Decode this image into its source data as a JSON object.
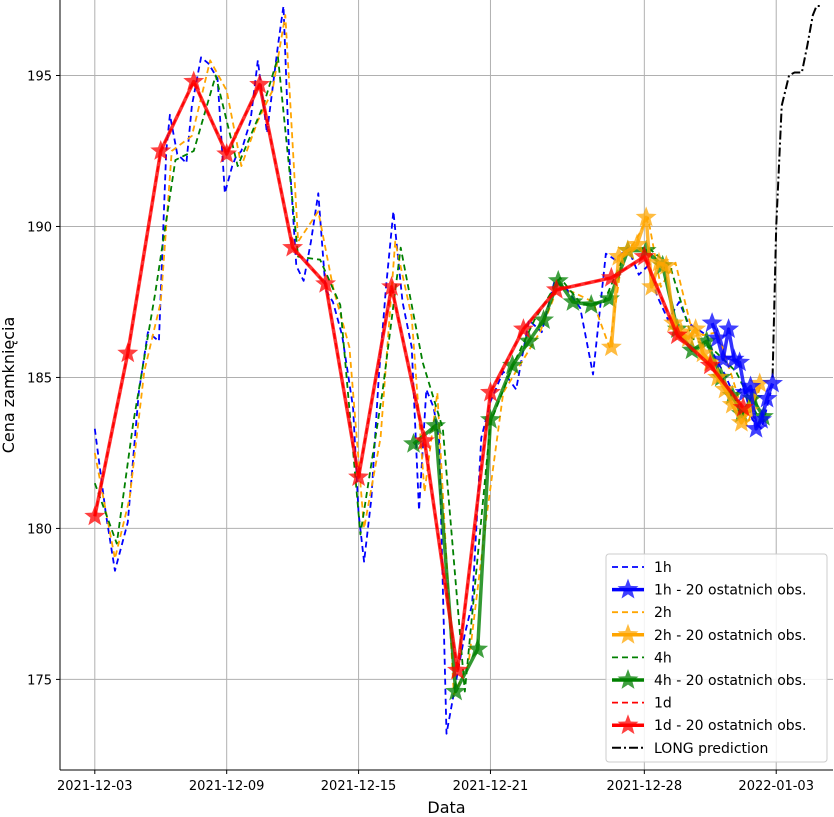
{
  "chart_data": {
    "type": "line",
    "xlabel": "Data",
    "ylabel": "Cena zamknięcia",
    "xlim": [
      "2021-12-01T10:00",
      "2022-01-05T14:00"
    ],
    "ylim": [
      172,
      197.5
    ],
    "x_ticks": [
      "2021-12-03",
      "2021-12-09",
      "2021-12-15",
      "2021-12-21",
      "2021-12-28",
      "2022-01-03"
    ],
    "y_ticks": [
      175,
      180,
      185,
      190,
      195
    ],
    "grid": true,
    "legend_position": "lower-right",
    "series": [
      {
        "name": "1h",
        "color": "#0000ff",
        "style": "dashed",
        "x": [
          "2021-12-03T00:00",
          "2021-12-03T12:00",
          "2021-12-03T22:00",
          "2021-12-04T12:00",
          "2021-12-05T00:00",
          "2021-12-05T10:00",
          "2021-12-05T22:00",
          "2021-12-06T06:00",
          "2021-12-06T10:00",
          "2021-12-06T18:00",
          "2021-12-07T04:00",
          "2021-12-07T10:00",
          "2021-12-07T20:00",
          "2021-12-08T04:00",
          "2021-12-08T14:00",
          "2021-12-08T22:00",
          "2021-12-09T06:00",
          "2021-12-09T10:00",
          "2021-12-09T16:00",
          "2021-12-10T02:00",
          "2021-12-10T10:00",
          "2021-12-10T20:00",
          "2021-12-11T08:00",
          "2021-12-11T14:00",
          "2021-12-11T20:00",
          "2021-12-12T04:00",
          "2021-12-12T12:00",
          "2021-12-12T20:00",
          "2021-12-13T04:00",
          "2021-12-13T12:00",
          "2021-12-13T20:00",
          "2021-12-14T06:00",
          "2021-12-14T18:00",
          "2021-12-15T00:00",
          "2021-12-15T06:00",
          "2021-12-15T14:00",
          "2021-12-15T22:00",
          "2021-12-16T06:00",
          "2021-12-16T14:00",
          "2021-12-17T00:00",
          "2021-12-17T10:00",
          "2021-12-17T18:00",
          "2021-12-18T02:00",
          "2021-12-18T10:00",
          "2021-12-18T16:00",
          "2021-12-19T00:00",
          "2021-12-19T12:00",
          "2021-12-19T20:00",
          "2021-12-20T04:00",
          "2021-12-20T14:00",
          "2021-12-21T00:00",
          "2021-12-21T14:00",
          "2021-12-22T04:00",
          "2021-12-22T18:00",
          "2021-12-23T08:00",
          "2021-12-23T22:00",
          "2021-12-24T12:00",
          "2021-12-25T02:00",
          "2021-12-25T16:00",
          "2021-12-26T06:00",
          "2021-12-26T16:00",
          "2021-12-27T06:00",
          "2021-12-27T18:00",
          "2021-12-28T04:00",
          "2021-12-28T14:00",
          "2021-12-29T02:00",
          "2021-12-29T14:00",
          "2021-12-30T00:00",
          "2021-12-30T10:00",
          "2021-12-30T20:00",
          "2021-12-31T06:00",
          "2021-12-31T16:00",
          "2022-01-01T02:00",
          "2022-01-01T12:00",
          "2022-01-01T22:00",
          "2022-01-02T08:00",
          "2022-01-02T18:00"
        ],
        "y": [
          183.3,
          180.5,
          178.6,
          180.2,
          184.5,
          186.5,
          186.2,
          192.5,
          193.7,
          192.4,
          192.1,
          194.0,
          195.6,
          195.4,
          194.9,
          191.1,
          192.0,
          192.3,
          192.5,
          193.5,
          195.5,
          193.1,
          196.0,
          197.3,
          192.5,
          188.7,
          188.2,
          189.5,
          191.1,
          187.9,
          187.5,
          186.4,
          184.0,
          180.5,
          178.9,
          181.0,
          185.0,
          188.0,
          190.5,
          187.5,
          186.0,
          180.6,
          184.6,
          184.0,
          182.9,
          173.2,
          175.2,
          176.5,
          177.5,
          183.0,
          184.2,
          185.2,
          184.6,
          186.9,
          186.5,
          188.2,
          187.9,
          187.3,
          185.1,
          189.1,
          188.9,
          189.3,
          188.4,
          188.7,
          187.7,
          186.9,
          187.5,
          186.8,
          186.6,
          186.4,
          185.6,
          185.1,
          184.4,
          184.7,
          183.6,
          183.3,
          184.5
        ]
      },
      {
        "name": "1h - 20 ostatnich obs.",
        "color": "#0000ff",
        "style": "solid-star",
        "x": [
          "2021-12-31T02:00",
          "2021-12-31T08:00",
          "2021-12-31T14:00",
          "2021-12-31T20:00",
          "2022-01-01T02:00",
          "2022-01-01T08:00",
          "2022-01-01T14:00",
          "2022-01-01T20:00",
          "2022-01-02T02:00",
          "2022-01-02T08:00",
          "2022-01-02T14:00",
          "2022-01-02T20:00"
        ],
        "y": [
          186.8,
          186.3,
          185.6,
          186.6,
          185.6,
          185.5,
          184.5,
          184.7,
          183.3,
          183.6,
          184.3,
          184.8
        ]
      },
      {
        "name": "2h",
        "color": "#ffa500",
        "style": "dashed",
        "x": [
          "2021-12-03T00:00",
          "2021-12-03T22:00",
          "2021-12-04T14:00",
          "2021-12-05T06:00",
          "2021-12-06T00:00",
          "2021-12-06T12:00",
          "2021-12-07T10:00",
          "2021-12-08T06:00",
          "2021-12-09T00:00",
          "2021-12-09T16:00",
          "2021-12-10T10:00",
          "2021-12-11T02:00",
          "2021-12-11T16:00",
          "2021-12-12T06:00",
          "2021-12-13T04:00",
          "2021-12-13T20:00",
          "2021-12-14T14:00",
          "2021-12-15T06:00",
          "2021-12-16T00:00",
          "2021-12-16T16:00",
          "2021-12-17T10:00",
          "2021-12-18T00:00",
          "2021-12-18T14:00",
          "2021-12-19T08:00",
          "2021-12-20T00:00",
          "2021-12-20T18:00",
          "2021-12-21T14:00",
          "2021-12-22T10:00",
          "2021-12-23T06:00",
          "2021-12-24T02:00",
          "2021-12-24T20:00",
          "2021-12-25T16:00",
          "2021-12-26T10:00",
          "2021-12-27T00:00",
          "2021-12-27T14:00",
          "2021-12-28T04:00",
          "2021-12-28T18:00",
          "2021-12-29T10:00",
          "2021-12-30T02:00",
          "2021-12-30T16:00",
          "2021-12-31T08:00",
          "2022-01-01T00:00",
          "2022-01-01T16:00",
          "2022-01-02T08:00"
        ],
        "y": [
          182.5,
          179.0,
          181.0,
          185.2,
          187.5,
          192.5,
          193.0,
          195.5,
          194.5,
          192.0,
          193.5,
          194.5,
          197.0,
          189.5,
          190.5,
          188.0,
          186.0,
          180.0,
          183.0,
          189.5,
          187.0,
          181.2,
          184.5,
          174.5,
          175.5,
          180.0,
          184.5,
          185.5,
          186.5,
          188.0,
          187.8,
          187.5,
          186.0,
          189.0,
          189.5,
          190.3,
          188.0,
          188.8,
          186.8,
          186.4,
          186.5,
          185.0,
          183.4,
          184.8
        ]
      },
      {
        "name": "2h - 20 ostatnich obs.",
        "color": "#ffa500",
        "style": "solid-star",
        "x": [
          "2021-12-26T12:00",
          "2021-12-26T20:00",
          "2021-12-27T06:00",
          "2021-12-27T16:00",
          "2021-12-28T02:00",
          "2021-12-28T08:00",
          "2021-12-28T16:00",
          "2021-12-29T00:00",
          "2021-12-29T08:00",
          "2021-12-29T16:00",
          "2021-12-30T00:00",
          "2021-12-30T08:00",
          "2021-12-30T16:00",
          "2021-12-31T00:00",
          "2021-12-31T08:00",
          "2021-12-31T16:00",
          "2022-01-01T00:00",
          "2022-01-01T10:00",
          "2022-01-01T18:00",
          "2022-01-02T06:00"
        ],
        "y": [
          186.0,
          189.0,
          189.2,
          189.4,
          190.3,
          188.0,
          188.8,
          188.7,
          186.8,
          186.5,
          186.3,
          186.6,
          185.8,
          185.5,
          185.0,
          184.6,
          184.1,
          183.5,
          183.9,
          184.8
        ]
      },
      {
        "name": "4h",
        "color": "#008000",
        "style": "dashed",
        "x": [
          "2021-12-03T00:00",
          "2021-12-04T00:00",
          "2021-12-04T18:00",
          "2021-12-05T18:00",
          "2021-12-06T16:00",
          "2021-12-07T12:00",
          "2021-12-08T12:00",
          "2021-12-09T12:00",
          "2021-12-10T16:00",
          "2021-12-11T08:00",
          "2021-12-12T06:00",
          "2021-12-13T06:00",
          "2021-12-14T04:00",
          "2021-12-15T02:00",
          "2021-12-16T02:00",
          "2021-12-16T22:00",
          "2021-12-17T22:00",
          "2021-12-18T20:00",
          "2021-12-19T20:00",
          "2021-12-21T00:00",
          "2021-12-22T02:00",
          "2021-12-23T00:00",
          "2021-12-24T04:00",
          "2021-12-25T04:00",
          "2021-12-26T04:00",
          "2021-12-27T04:00",
          "2021-12-28T04:00",
          "2021-12-29T04:00",
          "2021-12-30T04:00",
          "2021-12-31T04:00",
          "2022-01-01T04:00",
          "2022-01-02T04:00"
        ],
        "y": [
          181.5,
          179.5,
          183.5,
          187.8,
          192.2,
          192.5,
          195.0,
          192.0,
          194.0,
          195.6,
          189.0,
          188.9,
          187.4,
          179.8,
          184.5,
          189.3,
          185.5,
          183.3,
          174.6,
          183.5,
          185.5,
          186.9,
          188.3,
          187.4,
          187.5,
          189.2,
          189.3,
          188.7,
          186.3,
          185.9,
          185.2,
          183.7
        ]
      },
      {
        "name": "4h - 20 ostatnich obs.",
        "color": "#008000",
        "style": "solid-star",
        "x": [
          "2021-12-17T12:00",
          "2021-12-18T12:00",
          "2021-12-19T10:00",
          "2021-12-20T10:00",
          "2021-12-21T00:00",
          "2021-12-22T00:00",
          "2021-12-22T18:00",
          "2021-12-23T10:00",
          "2021-12-24T02:00",
          "2021-12-24T18:00",
          "2021-12-25T14:00",
          "2021-12-26T10:00",
          "2021-12-27T06:00",
          "2021-12-28T02:00",
          "2021-12-28T20:00",
          "2021-12-29T12:00",
          "2021-12-30T04:00",
          "2021-12-30T20:00",
          "2021-12-31T12:00",
          "2022-01-01T00:00",
          "2022-01-01T10:00",
          "2022-01-01T22:00",
          "2022-01-02T10:00"
        ],
        "y": [
          182.8,
          183.4,
          174.6,
          176.0,
          183.6,
          185.4,
          186.2,
          186.9,
          188.2,
          187.5,
          187.4,
          187.6,
          189.2,
          189.2,
          188.7,
          186.6,
          185.9,
          186.2,
          185.0,
          184.4,
          183.8,
          184.3,
          183.7
        ]
      },
      {
        "name": "1d",
        "color": "#ff0000",
        "style": "dashed",
        "x": [
          "2021-12-03T00:00",
          "2021-12-04T12:00",
          "2021-12-06T00:00",
          "2021-12-07T12:00",
          "2021-12-09T00:00",
          "2021-12-10T12:00",
          "2021-12-12T00:00",
          "2021-12-13T12:00",
          "2021-12-15T00:00",
          "2021-12-16T12:00",
          "2021-12-18T00:00",
          "2021-12-19T12:00",
          "2021-12-21T00:00",
          "2021-12-22T12:00",
          "2021-12-24T00:00",
          "2021-12-26T12:00",
          "2021-12-28T00:00",
          "2021-12-29T12:00",
          "2021-12-31T00:00",
          "2022-01-01T12:00"
        ],
        "y": [
          180.4,
          185.8,
          192.5,
          194.8,
          192.4,
          194.7,
          189.3,
          188.1,
          181.7,
          188.0,
          182.9,
          175.3,
          184.5,
          186.6,
          187.9,
          188.3,
          189.0,
          186.4,
          185.4,
          184.0
        ]
      },
      {
        "name": "1d - 20 ostatnich obs.",
        "color": "#ff0000",
        "style": "solid-star",
        "x": [
          "2021-12-03T00:00",
          "2021-12-04T12:00",
          "2021-12-06T00:00",
          "2021-12-07T12:00",
          "2021-12-09T00:00",
          "2021-12-10T12:00",
          "2021-12-12T00:00",
          "2021-12-13T12:00",
          "2021-12-15T00:00",
          "2021-12-16T12:00",
          "2021-12-18T00:00",
          "2021-12-19T12:00",
          "2021-12-21T00:00",
          "2021-12-22T12:00",
          "2021-12-24T00:00",
          "2021-12-26T12:00",
          "2021-12-28T00:00",
          "2021-12-29T12:00",
          "2021-12-31T00:00",
          "2022-01-01T12:00"
        ],
        "y": [
          180.4,
          185.8,
          192.5,
          194.8,
          192.4,
          194.7,
          189.3,
          188.1,
          181.7,
          188.0,
          182.9,
          175.3,
          184.5,
          186.6,
          187.9,
          188.3,
          189.0,
          186.4,
          185.4,
          184.0
        ]
      },
      {
        "name": "LONG prediction",
        "color": "#000000",
        "style": "dashdot",
        "x": [
          "2022-01-02T20:00",
          "2022-01-03T00:00",
          "2022-01-03T06:00",
          "2022-01-03T14:00",
          "2022-01-03T20:00",
          "2022-01-04T04:00",
          "2022-01-04T10:00",
          "2022-01-04T16:00",
          "2022-01-04T20:00",
          "2022-01-05T00:00"
        ],
        "y": [
          185.0,
          190.0,
          194.0,
          195.0,
          195.1,
          195.1,
          196.0,
          197.0,
          197.3,
          197.3
        ]
      }
    ]
  }
}
